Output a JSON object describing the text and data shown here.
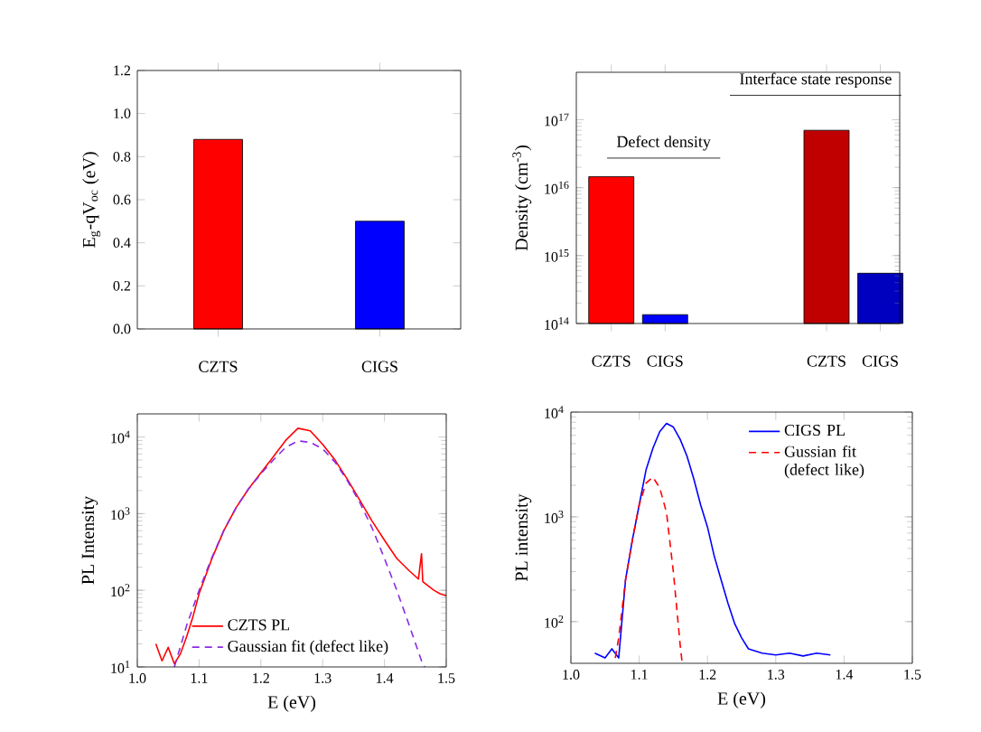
{
  "chart_data": [
    {
      "type": "bar",
      "ylabel": "E$_{g}$-qV$_{oc}$ (eV)",
      "categories": [
        "CZTS",
        "CIGS"
      ],
      "values": [
        0.88,
        0.5
      ],
      "colors": [
        "#ff0000",
        "#0000ff"
      ],
      "ylim": [
        0,
        1.2
      ],
      "yticks": [
        {
          "value": 0,
          "label": "0.0"
        },
        {
          "value": 0.2,
          "label": "0.2"
        },
        {
          "value": 0.4,
          "label": "0.4"
        },
        {
          "value": 0.6,
          "label": "0.6"
        },
        {
          "value": 0.8,
          "label": "0.8"
        },
        {
          "value": 1.0,
          "label": "1.0"
        },
        {
          "value": 1.2,
          "label": "1.2"
        }
      ]
    },
    {
      "type": "bar",
      "ylabel": "Density (cm$^{-3}$)",
      "log": true,
      "categories": [
        "CZTS",
        "CIGS",
        null,
        null,
        "CZTS",
        "CIGS"
      ],
      "values": [
        1.45e+16,
        135000000000000.0,
        null,
        null,
        7e+16,
        550000000000000.0
      ],
      "colors": [
        "#ff0000",
        "#0000ff",
        "#ff0000",
        "#0000ff",
        "#c00000",
        "#0000c0"
      ],
      "ylim": [
        100000000000000.0,
        5e+17
      ],
      "yticks": [
        {
          "value": 100000000000000.0,
          "label": "10$^{14}$"
        },
        {
          "value": 1000000000000000.0,
          "label": "10$^{15}$"
        },
        {
          "value": 1e+16,
          "label": "10$^{16}$"
        },
        {
          "value": 1e+17,
          "label": "10$^{17}$"
        }
      ],
      "annotations": [
        "Defect density",
        "Interface state response"
      ]
    },
    {
      "type": "line",
      "xlabel": "E (eV)",
      "ylabel": "PL Intensity",
      "log": "y",
      "legend": "bottom",
      "xlim": [
        1.0,
        1.5
      ],
      "ylim": [
        10,
        20000
      ],
      "xticks": [
        {
          "value": 1.0,
          "label": "1.0"
        },
        {
          "value": 1.1,
          "label": "1.1"
        },
        {
          "value": 1.2,
          "label": "1.2"
        },
        {
          "value": 1.3,
          "label": "1.3"
        },
        {
          "value": 1.4,
          "label": "1.4"
        },
        {
          "value": 1.5,
          "label": "1.5"
        }
      ],
      "yticks": [
        {
          "value": 10,
          "label": "10$^{1}$"
        },
        {
          "value": 100,
          "label": "10$^{2}$"
        },
        {
          "value": 1000,
          "label": "10$^{3}$"
        },
        {
          "value": 10000,
          "label": "10$^{4}$"
        }
      ],
      "series": [
        {
          "name": "CZTS PL",
          "color": "#ff0000",
          "line_style": "solid",
          "x": [
            1.03,
            1.04,
            1.05,
            1.06,
            1.07,
            1.08,
            1.09,
            1.1,
            1.12,
            1.14,
            1.16,
            1.18,
            1.2,
            1.22,
            1.24,
            1.26,
            1.28,
            1.3,
            1.32,
            1.34,
            1.36,
            1.38,
            1.4,
            1.42,
            1.44,
            1.455,
            1.46,
            1.462,
            1.48,
            1.49,
            1.5
          ],
          "values": [
            20,
            12,
            18,
            11,
            15,
            25,
            45,
            90,
            250,
            600,
            1200,
            2100,
            3400,
            5500,
            9000,
            13000,
            12000,
            8000,
            5000,
            2800,
            1500,
            800,
            450,
            260,
            180,
            140,
            300,
            130,
            100,
            90,
            85
          ]
        },
        {
          "name": "Gaussian fit (defect like)",
          "color": "#8a2be2",
          "line_style": "dashed",
          "x": [
            1.06,
            1.08,
            1.1,
            1.12,
            1.14,
            1.16,
            1.18,
            1.2,
            1.22,
            1.24,
            1.26,
            1.28,
            1.3,
            1.32,
            1.34,
            1.36,
            1.38,
            1.4,
            1.42,
            1.44,
            1.46,
            1.465
          ],
          "values": [
            10,
            35,
            100,
            260,
            600,
            1200,
            2100,
            3300,
            5000,
            7300,
            8900,
            8500,
            7000,
            4700,
            2700,
            1400,
            650,
            260,
            100,
            35,
            12,
            10
          ]
        }
      ]
    },
    {
      "type": "line",
      "xlabel": "E (eV)",
      "ylabel": "PL intensity",
      "log": "y",
      "legend": "top right",
      "xlim": [
        1.0,
        1.5
      ],
      "ylim": [
        40,
        10000
      ],
      "xticks": [
        {
          "value": 1.0,
          "label": "1.0"
        },
        {
          "value": 1.1,
          "label": "1.1"
        },
        {
          "value": 1.2,
          "label": "1.2"
        },
        {
          "value": 1.3,
          "label": "1.3"
        },
        {
          "value": 1.4,
          "label": "1.4"
        },
        {
          "value": 1.5,
          "label": "1.5"
        }
      ],
      "yticks": [
        {
          "value": 100,
          "label": "10$^{2}$"
        },
        {
          "value": 1000,
          "label": "10$^{3}$"
        },
        {
          "value": 10000,
          "label": "10$^{4}$"
        }
      ],
      "series": [
        {
          "name": "CIGS PL",
          "color": "#0000ff",
          "line_style": "solid",
          "x": [
            1.035,
            1.05,
            1.06,
            1.07,
            1.08,
            1.09,
            1.1,
            1.11,
            1.12,
            1.13,
            1.14,
            1.15,
            1.16,
            1.17,
            1.18,
            1.19,
            1.2,
            1.21,
            1.22,
            1.23,
            1.24,
            1.25,
            1.26,
            1.28,
            1.3,
            1.32,
            1.34,
            1.36,
            1.38
          ],
          "values": [
            50,
            45,
            55,
            45,
            250,
            600,
            1300,
            2800,
            4500,
            6500,
            7800,
            7200,
            5500,
            3800,
            2300,
            1300,
            800,
            420,
            250,
            150,
            95,
            70,
            55,
            50,
            48,
            50,
            47,
            50,
            48
          ]
        },
        {
          "name": "Gussian fit (defect like)",
          "color": "#ff0000",
          "line_style": "dashed",
          "x": [
            1.065,
            1.07,
            1.08,
            1.09,
            1.1,
            1.11,
            1.12,
            1.13,
            1.14,
            1.15,
            1.16,
            1.163
          ],
          "values": [
            45,
            70,
            250,
            600,
            1300,
            2100,
            2400,
            1900,
            1100,
            300,
            60,
            40
          ]
        }
      ]
    }
  ]
}
